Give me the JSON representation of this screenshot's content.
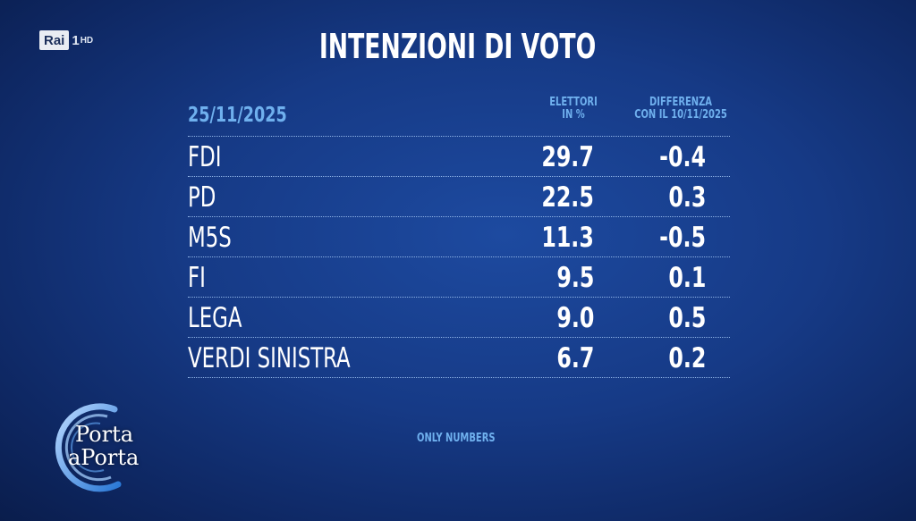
{
  "channel": {
    "brand": "Rai",
    "number": "1",
    "hd": "HD"
  },
  "title": "INTENZIONI DI VOTO",
  "table": {
    "date": "25/11/2025",
    "col1_header": [
      "ELETTORI",
      "IN %"
    ],
    "col2_header": [
      "DIFFERENZA",
      "CON IL 10/11/2025"
    ]
  },
  "chart_data": {
    "type": "table",
    "title": "INTENZIONI DI VOTO",
    "columns": [
      "ELETTORI IN %",
      "DIFFERENZA CON IL 10/11/2025"
    ],
    "rows": [
      {
        "party": "FDI",
        "share": "29.7",
        "diff": "-0.4"
      },
      {
        "party": "PD",
        "share": "22.5",
        "diff": "0.3"
      },
      {
        "party": "M5S",
        "share": "11.3",
        "diff": "-0.5"
      },
      {
        "party": "FI",
        "share": "9.5",
        "diff": "0.1"
      },
      {
        "party": "LEGA",
        "share": "9.0",
        "diff": "0.5"
      },
      {
        "party": "VERDI SINISTRA",
        "share": "6.7",
        "diff": "0.2"
      }
    ]
  },
  "footer_note": "ONLY NUMBERS",
  "show_logo": {
    "line1": "Porta",
    "line2": "aPorta"
  },
  "colors": {
    "accent": "#6fb0ee",
    "background": "#163a86"
  }
}
